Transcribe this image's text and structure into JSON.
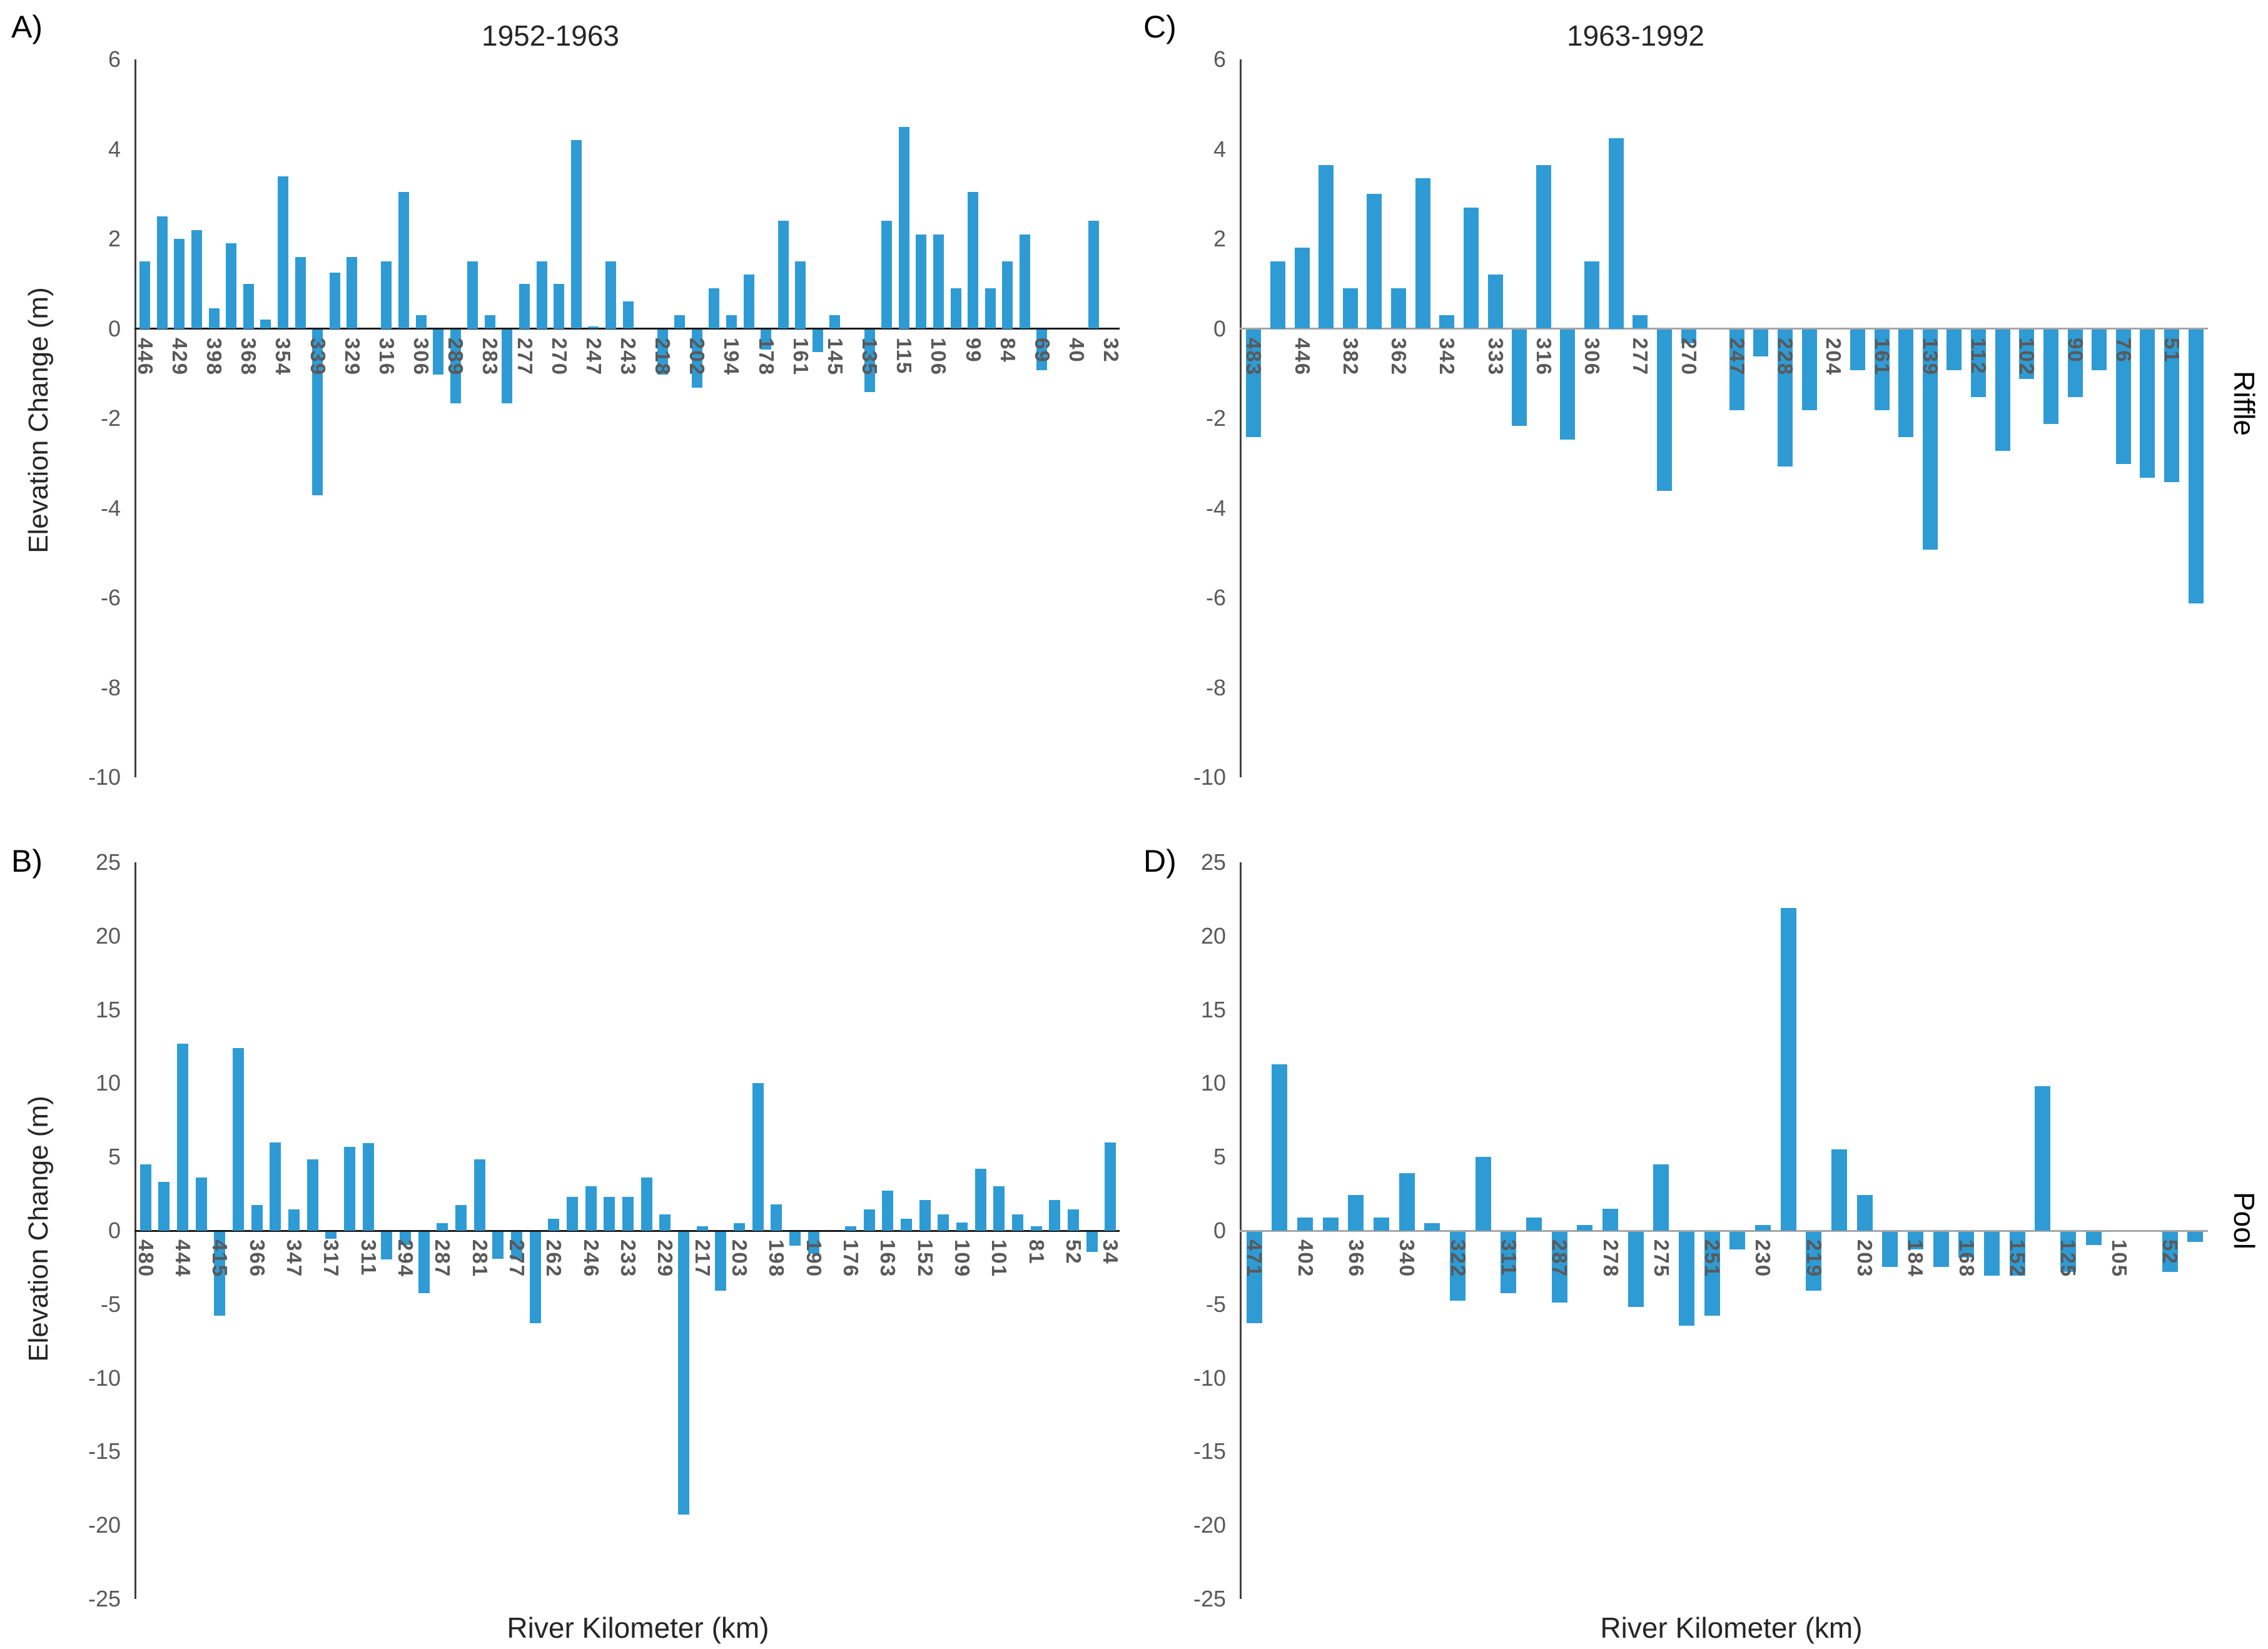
{
  "figure": {
    "bar_color": "#2E9BD5",
    "panel_letters": {
      "a": "A)",
      "b": "B)",
      "c": "C)",
      "d": "D)"
    },
    "row_labels": {
      "top": "Riffle",
      "bottom": "Pool"
    },
    "y_axis_title": "Elevation Change (m)",
    "x_axis_title": "River Kilometer (km)"
  },
  "chart_data": [
    {
      "id": "A",
      "type": "bar",
      "title": "1952-1963",
      "ylabel": "Elevation Change (m)",
      "ylim": [
        -10,
        6
      ],
      "yticks": [
        "6",
        "4",
        "2",
        "0",
        "-2",
        "-4",
        "-6",
        "-8",
        "-10"
      ],
      "grid": false,
      "legend": "none",
      "bars": [
        {
          "label": "446",
          "value": 1.5
        },
        {
          "label": "",
          "value": 2.5
        },
        {
          "label": "429",
          "value": 2.0
        },
        {
          "label": "",
          "value": 2.2
        },
        {
          "label": "398",
          "value": 0.45
        },
        {
          "label": "",
          "value": 1.9
        },
        {
          "label": "368",
          "value": 1.0
        },
        {
          "label": "",
          "value": 0.2
        },
        {
          "label": "354",
          "value": 3.4
        },
        {
          "label": "",
          "value": 1.6
        },
        {
          "label": "339",
          "value": -3.7
        },
        {
          "label": "",
          "value": 1.25
        },
        {
          "label": "329",
          "value": 1.6
        },
        {
          "label": "",
          "value": 0
        },
        {
          "label": "316",
          "value": 1.5
        },
        {
          "label": "",
          "value": 3.05
        },
        {
          "label": "306",
          "value": 0.3
        },
        {
          "label": "",
          "value": -1.0
        },
        {
          "label": "289",
          "value": -1.65
        },
        {
          "label": "",
          "value": 1.5
        },
        {
          "label": "283",
          "value": 0.3
        },
        {
          "label": "",
          "value": -1.65
        },
        {
          "label": "277",
          "value": 1.0
        },
        {
          "label": "",
          "value": 1.5
        },
        {
          "label": "270",
          "value": 1.0
        },
        {
          "label": "",
          "value": 4.2
        },
        {
          "label": "247",
          "value": 0.05
        },
        {
          "label": "",
          "value": 1.5
        },
        {
          "label": "243",
          "value": 0.6
        },
        {
          "label": "",
          "value": 0
        },
        {
          "label": "218",
          "value": -1.0
        },
        {
          "label": "",
          "value": 0.3
        },
        {
          "label": "202",
          "value": -1.3
        },
        {
          "label": "",
          "value": 0.9
        },
        {
          "label": "194",
          "value": 0.3
        },
        {
          "label": "",
          "value": 1.2
        },
        {
          "label": "178",
          "value": -0.45
        },
        {
          "label": "",
          "value": 2.4
        },
        {
          "label": "161",
          "value": 1.5
        },
        {
          "label": "",
          "value": -0.5
        },
        {
          "label": "145",
          "value": 0.3
        },
        {
          "label": "",
          "value": 0
        },
        {
          "label": "135",
          "value": -1.4
        },
        {
          "label": "",
          "value": 2.4
        },
        {
          "label": "115",
          "value": 4.5
        },
        {
          "label": "",
          "value": 2.1
        },
        {
          "label": "106",
          "value": 2.1
        },
        {
          "label": "",
          "value": 0.9
        },
        {
          "label": "99",
          "value": 3.05
        },
        {
          "label": "",
          "value": 0.9
        },
        {
          "label": "84",
          "value": 1.5
        },
        {
          "label": "",
          "value": 2.1
        },
        {
          "label": "69",
          "value": -0.9
        },
        {
          "label": "",
          "value": 0
        },
        {
          "label": "40",
          "value": 0
        },
        {
          "label": "",
          "value": 2.4
        },
        {
          "label": "32",
          "value": 0
        }
      ]
    },
    {
      "id": "B",
      "type": "bar",
      "title": "",
      "ylabel": "Elevation Change (m)",
      "xlabel": "River Kilometer (km)",
      "ylim": [
        -25,
        25
      ],
      "yticks": [
        "25",
        "20",
        "15",
        "10",
        "5",
        "0",
        "-5",
        "-10",
        "-15",
        "-20",
        "-25"
      ],
      "grid": false,
      "legend": "none",
      "bars": [
        {
          "label": "480",
          "value": 4.5
        },
        {
          "label": "",
          "value": 3.3
        },
        {
          "label": "444",
          "value": 12.7
        },
        {
          "label": "",
          "value": 3.6
        },
        {
          "label": "415",
          "value": -5.7
        },
        {
          "label": "",
          "value": 12.4
        },
        {
          "label": "366",
          "value": 1.75
        },
        {
          "label": "",
          "value": 6.0
        },
        {
          "label": "347",
          "value": 1.45
        },
        {
          "label": "",
          "value": 4.85
        },
        {
          "label": "317",
          "value": -0.5
        },
        {
          "label": "",
          "value": 5.7
        },
        {
          "label": "311",
          "value": 5.95
        },
        {
          "label": "",
          "value": -1.9
        },
        {
          "label": "294",
          "value": -0.9
        },
        {
          "label": "",
          "value": -4.2
        },
        {
          "label": "287",
          "value": 0.5
        },
        {
          "label": "",
          "value": 1.75
        },
        {
          "label": "281",
          "value": 4.85
        },
        {
          "label": "",
          "value": -1.85
        },
        {
          "label": "277",
          "value": -1.9
        },
        {
          "label": "",
          "value": -6.2
        },
        {
          "label": "262",
          "value": 0.8
        },
        {
          "label": "",
          "value": 2.3
        },
        {
          "label": "246",
          "value": 3.0
        },
        {
          "label": "",
          "value": 2.3
        },
        {
          "label": "233",
          "value": 2.3
        },
        {
          "label": "",
          "value": 3.6
        },
        {
          "label": "229",
          "value": 1.1
        },
        {
          "label": "",
          "value": -19.2
        },
        {
          "label": "217",
          "value": 0.3
        },
        {
          "label": "",
          "value": -4.0
        },
        {
          "label": "203",
          "value": 0.5
        },
        {
          "label": "",
          "value": 10.0
        },
        {
          "label": "198",
          "value": 1.8
        },
        {
          "label": "",
          "value": -0.95
        },
        {
          "label": "190",
          "value": -1.5
        },
        {
          "label": "",
          "value": 0
        },
        {
          "label": "176",
          "value": 0.3
        },
        {
          "label": "",
          "value": 1.45
        },
        {
          "label": "163",
          "value": 2.7
        },
        {
          "label": "",
          "value": 0.8
        },
        {
          "label": "152",
          "value": 2.1
        },
        {
          "label": "",
          "value": 1.1
        },
        {
          "label": "109",
          "value": 0.55
        },
        {
          "label": "",
          "value": 4.2
        },
        {
          "label": "101",
          "value": 3.0
        },
        {
          "label": "",
          "value": 1.1
        },
        {
          "label": "81",
          "value": 0.3
        },
        {
          "label": "",
          "value": 2.1
        },
        {
          "label": "52",
          "value": 1.45
        },
        {
          "label": "",
          "value": -1.4
        },
        {
          "label": "34",
          "value": 6.0
        }
      ]
    },
    {
      "id": "C",
      "type": "bar",
      "title": "1963-1992",
      "ylim": [
        -10,
        6
      ],
      "yticks": [
        "6",
        "4",
        "2",
        "0",
        "-2",
        "-4",
        "-6",
        "-8",
        "-10"
      ],
      "grid": false,
      "legend": "none",
      "bars": [
        {
          "label": "483",
          "value": -2.4
        },
        {
          "label": "",
          "value": 1.5
        },
        {
          "label": "446",
          "value": 1.8
        },
        {
          "label": "",
          "value": 3.65
        },
        {
          "label": "382",
          "value": 0.9
        },
        {
          "label": "",
          "value": 3.0
        },
        {
          "label": "362",
          "value": 0.9
        },
        {
          "label": "",
          "value": 3.35
        },
        {
          "label": "342",
          "value": 0.3
        },
        {
          "label": "",
          "value": 2.7
        },
        {
          "label": "333",
          "value": 1.2
        },
        {
          "label": "",
          "value": -2.15
        },
        {
          "label": "316",
          "value": 3.65
        },
        {
          "label": "",
          "value": -2.45
        },
        {
          "label": "306",
          "value": 1.5
        },
        {
          "label": "",
          "value": 4.25
        },
        {
          "label": "277",
          "value": 0.3
        },
        {
          "label": "",
          "value": -3.6
        },
        {
          "label": "270",
          "value": -0.3
        },
        {
          "label": "",
          "value": 0
        },
        {
          "label": "247",
          "value": -1.8
        },
        {
          "label": "",
          "value": -0.6
        },
        {
          "label": "228",
          "value": -3.05
        },
        {
          "label": "",
          "value": -1.8
        },
        {
          "label": "204",
          "value": 0
        },
        {
          "label": "",
          "value": -0.9
        },
        {
          "label": "161",
          "value": -1.8
        },
        {
          "label": "",
          "value": -2.4
        },
        {
          "label": "139",
          "value": -4.9
        },
        {
          "label": "",
          "value": -0.9
        },
        {
          "label": "112",
          "value": -1.5
        },
        {
          "label": "",
          "value": -2.7
        },
        {
          "label": "102",
          "value": -1.1
        },
        {
          "label": "",
          "value": -2.1
        },
        {
          "label": "90",
          "value": -1.5
        },
        {
          "label": "",
          "value": -0.9
        },
        {
          "label": "76",
          "value": -3.0
        },
        {
          "label": "",
          "value": -3.3
        },
        {
          "label": "51",
          "value": -3.4
        },
        {
          "label": "",
          "value": -6.1
        }
      ]
    },
    {
      "id": "D",
      "type": "bar",
      "title": "",
      "xlabel": "River Kilometer (km)",
      "ylim": [
        -25,
        25
      ],
      "yticks": [
        "25",
        "20",
        "15",
        "10",
        "5",
        "0",
        "-5",
        "-10",
        "-15",
        "-20",
        "-25"
      ],
      "grid": false,
      "legend": "none",
      "bars": [
        {
          "label": "471",
          "value": -6.2
        },
        {
          "label": "",
          "value": 11.3
        },
        {
          "label": "402",
          "value": 0.9
        },
        {
          "label": "",
          "value": 0.9
        },
        {
          "label": "366",
          "value": 2.4
        },
        {
          "label": "",
          "value": 0.9
        },
        {
          "label": "340",
          "value": 3.9
        },
        {
          "label": "",
          "value": 0.5
        },
        {
          "label": "322",
          "value": -4.7
        },
        {
          "label": "",
          "value": 5.0
        },
        {
          "label": "311",
          "value": -4.2
        },
        {
          "label": "",
          "value": 0.9
        },
        {
          "label": "287",
          "value": -4.8
        },
        {
          "label": "",
          "value": 0.4
        },
        {
          "label": "278",
          "value": 1.5
        },
        {
          "label": "",
          "value": -5.1
        },
        {
          "label": "275",
          "value": 4.5
        },
        {
          "label": "",
          "value": -6.4
        },
        {
          "label": "251",
          "value": -5.7
        },
        {
          "label": "",
          "value": -1.2
        },
        {
          "label": "230",
          "value": 0.4
        },
        {
          "label": "",
          "value": 21.9
        },
        {
          "label": "219",
          "value": -4.0
        },
        {
          "label": "",
          "value": 5.5
        },
        {
          "label": "203",
          "value": 2.4
        },
        {
          "label": "",
          "value": -2.4
        },
        {
          "label": "184",
          "value": -1.2
        },
        {
          "label": "",
          "value": -2.4
        },
        {
          "label": "168",
          "value": -1.75
        },
        {
          "label": "",
          "value": -3.0
        },
        {
          "label": "152",
          "value": -3.0
        },
        {
          "label": "",
          "value": 9.8
        },
        {
          "label": "125",
          "value": -2.75
        },
        {
          "label": "",
          "value": -0.9
        },
        {
          "label": "105",
          "value": 0
        },
        {
          "label": "",
          "value": 0
        },
        {
          "label": "52",
          "value": -2.75
        },
        {
          "label": "",
          "value": -0.7
        }
      ]
    }
  ]
}
